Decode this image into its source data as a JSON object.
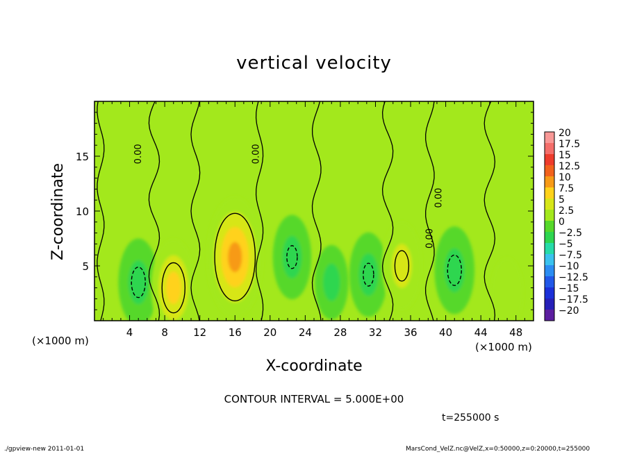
{
  "chart_data": {
    "type": "heatmap",
    "title": "vertical velocity",
    "xlabel": "X-coordinate",
    "ylabel": "Z-coordinate",
    "x_unit_label": "(×1000 m)",
    "xlim": [
      0,
      50
    ],
    "ylim": [
      0,
      20
    ],
    "x_ticks": [
      4,
      8,
      12,
      16,
      20,
      24,
      28,
      32,
      36,
      40,
      44,
      48
    ],
    "y_ticks": [
      5,
      10,
      15
    ],
    "colorbar": {
      "levels": [
        20,
        17.5,
        15,
        12.5,
        10,
        7.5,
        5,
        2.5,
        0,
        -2.5,
        -5,
        -7.5,
        -10,
        -12.5,
        -15,
        -17.5,
        -20
      ],
      "labels": [
        "20",
        "17.5",
        "15",
        "12.5",
        "10",
        "7.5",
        "5",
        "2.5",
        "0",
        "−2.5",
        "−5",
        "−7.5",
        "−10",
        "−12.5",
        "−15",
        "−17.5",
        "−20"
      ],
      "colors": [
        "#f89896",
        "#f46e6a",
        "#ee3c2c",
        "#f2621c",
        "#f79a16",
        "#ffd21a",
        "#d7e618",
        "#a3e81c",
        "#56d82a",
        "#2ed650",
        "#26dba8",
        "#3ac2ee",
        "#2b8df2",
        "#2158e8",
        "#1b30d8",
        "#2620b8",
        "#5c1ea0"
      ]
    },
    "contour_labels": [
      "0.00",
      "0.00",
      "0.00",
      "0.00"
    ],
    "contour_interval_text": "CONTOUR INTERVAL = 5.000E+00",
    "features": [
      {
        "x": 5.0,
        "z": 3.5,
        "value": -6
      },
      {
        "x": 9.0,
        "z": 3.0,
        "value": 7.5
      },
      {
        "x": 16.0,
        "z": 5.8,
        "value": 11
      },
      {
        "x": 22.5,
        "z": 5.8,
        "value": -5.5
      },
      {
        "x": 27.0,
        "z": 3.5,
        "value": -4
      },
      {
        "x": 31.2,
        "z": 4.2,
        "value": -5.5
      },
      {
        "x": 35.0,
        "z": 5.0,
        "value": 6
      },
      {
        "x": 41.0,
        "z": 4.6,
        "value": -6
      },
      {
        "x": 47.0,
        "z": 2.5,
        "value": 3.5
      }
    ]
  },
  "time_text": "t=255000 s",
  "footer_left": "./gpview-new   2011-01-01",
  "footer_right": "MarsCond_VelZ.nc@VelZ,x=0:50000,z=0:20000,t=255000"
}
